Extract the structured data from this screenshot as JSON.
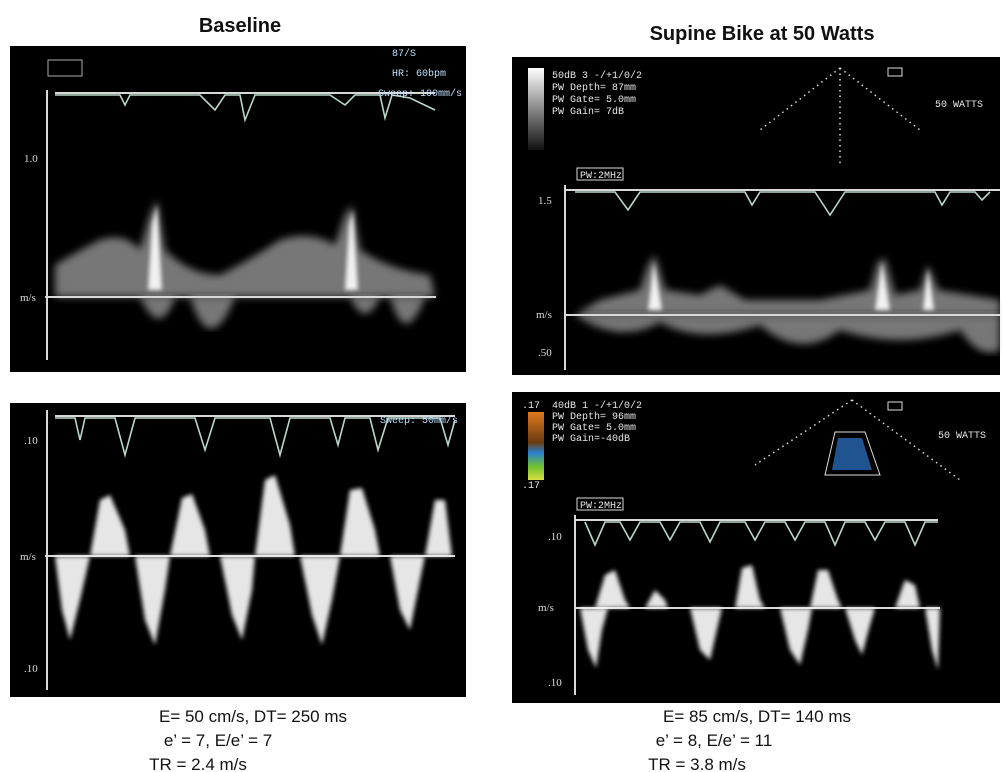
{
  "columns": [
    {
      "title": "Baseline",
      "panels": [
        {
          "texts": [
            "87/S",
            "HR: 60bpm",
            "Sweep: 100mm/s",
            "1.0",
            "m/s"
          ]
        },
        {
          "texts": [
            "Sweep: 50mm/s",
            ".10",
            "m/s",
            ".10"
          ]
        }
      ],
      "caption": [
        "E= 50 cm/s, DT= 250 ms",
        "e’ = 7, E/e’ = 7",
        "TR = 2.4 m/s"
      ]
    },
    {
      "title": "Supine Bike at 50 Watts",
      "panels": [
        {
          "texts": [
            "50dB 3 -/+1/0/2",
            "PW Depth= 87mm",
            "PW Gate= 5.0mm",
            "PW Gain= 7dB",
            "50 WATTS",
            "PW:2MHz",
            "1.5",
            "m/s",
            ".50"
          ]
        },
        {
          "texts": [
            ".17",
            "40dB 1 -/+1/0/2",
            "PW Depth= 96mm",
            "PW Gate= 5.0mm",
            "PW Gain=-40dB",
            "50 WATTS",
            "PW:2MHz",
            ".10",
            "m/s",
            ".10",
            ".17"
          ]
        }
      ],
      "caption": [
        "E= 85 cm/s, DT= 140 ms",
        "e’ = 8, E/e’ = 11",
        "TR = 3.8 m/s"
      ]
    }
  ]
}
